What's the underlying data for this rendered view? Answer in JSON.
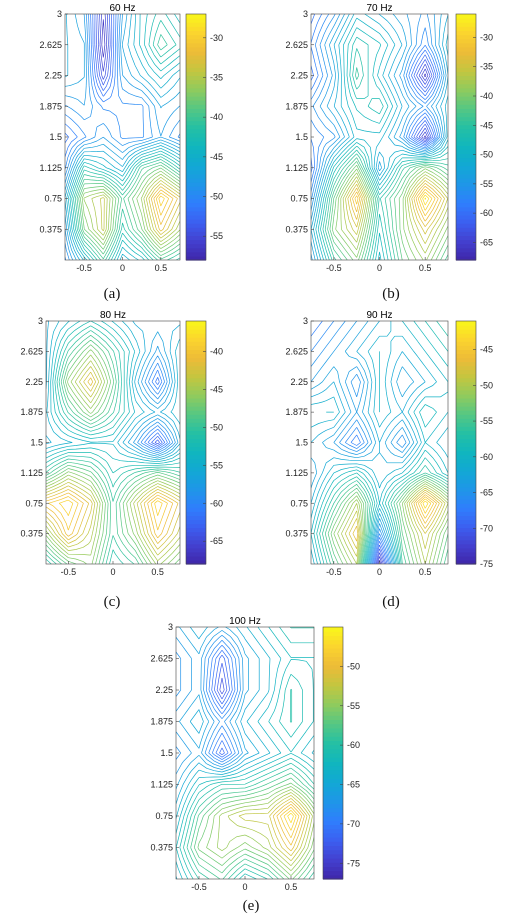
{
  "figure": {
    "captions": [
      "(a)",
      "(b)",
      "(c)",
      "(d)",
      "(e)"
    ]
  },
  "colormap": [
    "#3e26a8",
    "#4340cf",
    "#3c5ff0",
    "#2f7efd",
    "#1f96e8",
    "#12a8d4",
    "#10b6be",
    "#24c0a4",
    "#54c784",
    "#8ecb5e",
    "#c3c640",
    "#edbb38",
    "#fbd42e",
    "#f9f71a"
  ],
  "chart_data": [
    {
      "type": "heatmap",
      "style": "contour",
      "title": "60 Hz",
      "xlim": [
        -0.75,
        0.75
      ],
      "ylim": [
        0,
        3
      ],
      "xticks": [
        -0.5,
        0,
        0.5
      ],
      "xticklabels": [
        "-0.5",
        "0",
        "0.5"
      ],
      "yticks": [
        0.375,
        0.75,
        1.125,
        1.5,
        1.875,
        2.25,
        2.625,
        3
      ],
      "yticklabels": [
        "0.375",
        "0.75",
        "1.125",
        "1.5",
        "1.875",
        "2.25",
        "2.625",
        "3"
      ],
      "x": [
        -0.75,
        -0.5,
        -0.25,
        0,
        0.25,
        0.5,
        0.75
      ],
      "y": [
        0,
        0.375,
        0.75,
        1.125,
        1.5,
        1.875,
        2.25,
        2.625,
        3
      ],
      "z": [
        [
          -50,
          -45,
          -40,
          -46,
          -44,
          -40,
          -42
        ],
        [
          -48,
          -38,
          -34,
          -42,
          -38,
          -32,
          -36
        ],
        [
          -46,
          -36,
          -34,
          -40,
          -36,
          -29,
          -33
        ],
        [
          -50,
          -42,
          -44,
          -46,
          -40,
          -38,
          -42
        ],
        [
          -52,
          -50,
          -48,
          -50,
          -50,
          -48,
          -50
        ],
        [
          -49,
          -48,
          -50,
          -50,
          -50,
          -47,
          -48
        ],
        [
          -46,
          -47,
          -55,
          -48,
          -46,
          -44,
          -46
        ],
        [
          -46,
          -47,
          -57,
          -47,
          -44,
          -40,
          -42
        ],
        [
          -46,
          -48,
          -56,
          -48,
          -44,
          -42,
          -44
        ]
      ],
      "colorbar": {
        "ticks": [
          -30,
          -35,
          -40,
          -45,
          -50,
          -55
        ],
        "range": [
          -58,
          -27
        ]
      },
      "caption": "(a)"
    },
    {
      "type": "heatmap",
      "style": "contour",
      "title": "70 Hz",
      "xlim": [
        -0.75,
        0.75
      ],
      "ylim": [
        0,
        3
      ],
      "xticks": [
        -0.5,
        0,
        0.5
      ],
      "xticklabels": [
        "-0.5",
        "0",
        "0.5"
      ],
      "yticks": [
        0.375,
        0.75,
        1.125,
        1.5,
        1.875,
        2.25,
        2.625,
        3
      ],
      "yticklabels": [
        "0.375",
        "0.75",
        "1.125",
        "1.5",
        "1.875",
        "2.25",
        "2.625",
        "3"
      ],
      "x": [
        -0.75,
        -0.5,
        -0.25,
        0,
        0.25,
        0.5,
        0.75
      ],
      "y": [
        0,
        0.375,
        0.75,
        1.125,
        1.5,
        1.875,
        2.25,
        2.625,
        3
      ],
      "z": [
        [
          -55,
          -45,
          -40,
          -50,
          -42,
          -38,
          -44
        ],
        [
          -52,
          -40,
          -35,
          -48,
          -40,
          -34,
          -40
        ],
        [
          -56,
          -42,
          -30,
          -46,
          -40,
          -27,
          -36
        ],
        [
          -60,
          -48,
          -40,
          -54,
          -45,
          -40,
          -44
        ],
        [
          -58,
          -56,
          -50,
          -50,
          -55,
          -66,
          -50
        ],
        [
          -56,
          -52,
          -48,
          -46,
          -52,
          -56,
          -50
        ],
        [
          -60,
          -54,
          -44,
          -50,
          -55,
          -66,
          -52
        ],
        [
          -58,
          -52,
          -46,
          -48,
          -52,
          -58,
          -50
        ],
        [
          -60,
          -56,
          -50,
          -52,
          -54,
          -56,
          -52
        ]
      ],
      "colorbar": {
        "ticks": [
          -30,
          -35,
          -40,
          -45,
          -50,
          -55,
          -60,
          -65
        ],
        "range": [
          -68,
          -26
        ]
      },
      "caption": "(b)"
    },
    {
      "type": "heatmap",
      "style": "contour",
      "title": "80 Hz",
      "xlim": [
        -0.75,
        0.75
      ],
      "ylim": [
        0,
        3
      ],
      "xticks": [
        -0.5,
        0,
        0.5
      ],
      "xticklabels": [
        "-0.5",
        "0",
        "0.5"
      ],
      "yticks": [
        0.375,
        0.75,
        1.125,
        1.5,
        1.875,
        2.25,
        2.625,
        3
      ],
      "yticklabels": [
        "0.375",
        "0.75",
        "1.125",
        "1.5",
        "1.875",
        "2.25",
        "2.625",
        "3"
      ],
      "x": [
        -0.75,
        -0.5,
        -0.25,
        0,
        0.25,
        0.5,
        0.75
      ],
      "y": [
        0,
        0.375,
        0.75,
        1.125,
        1.5,
        1.875,
        2.25,
        2.625,
        3
      ],
      "z": [
        [
          -52,
          -48,
          -46,
          -52,
          -50,
          -45,
          -48
        ],
        [
          -46,
          -40,
          -44,
          -50,
          -46,
          -40,
          -44
        ],
        [
          -40,
          -38,
          -42,
          -50,
          -44,
          -38,
          -42
        ],
        [
          -50,
          -46,
          -48,
          -52,
          -50,
          -48,
          -50
        ],
        [
          -56,
          -55,
          -54,
          -54,
          -58,
          -64,
          -56
        ],
        [
          -55,
          -50,
          -46,
          -50,
          -54,
          -56,
          -54
        ],
        [
          -56,
          -46,
          -41,
          -48,
          -56,
          -62,
          -54
        ],
        [
          -56,
          -50,
          -46,
          -50,
          -54,
          -58,
          -54
        ],
        [
          -56,
          -54,
          -52,
          -54,
          -56,
          -56,
          -56
        ]
      ],
      "colorbar": {
        "ticks": [
          -40,
          -45,
          -50,
          -55,
          -60,
          -65
        ],
        "range": [
          -68,
          -36
        ]
      },
      "caption": "(c)"
    },
    {
      "type": "heatmap",
      "style": "contour",
      "title": "90 Hz",
      "xlim": [
        -0.75,
        0.75
      ],
      "ylim": [
        0,
        3
      ],
      "xticks": [
        -0.5,
        0,
        0.5
      ],
      "xticklabels": [
        "-0.5",
        "0",
        "0.5"
      ],
      "yticks": [
        0.375,
        0.75,
        1.125,
        1.5,
        1.875,
        2.25,
        2.625,
        3
      ],
      "yticklabels": [
        "0.375",
        "0.75",
        "1.125",
        "1.5",
        "1.875",
        "2.25",
        "2.625",
        "3"
      ],
      "x": [
        -0.75,
        -0.5,
        -0.25,
        0,
        0.25,
        0.5,
        0.75
      ],
      "y": [
        0,
        0.375,
        0.75,
        1.125,
        1.5,
        1.875,
        2.25,
        2.625,
        3
      ],
      "z": [
        [
          -62,
          -55,
          -50,
          -74,
          -56,
          -50,
          -56
        ],
        [
          -60,
          -52,
          -46,
          -66,
          -54,
          -48,
          -54
        ],
        [
          -62,
          -56,
          -50,
          -60,
          -52,
          -42,
          -50
        ],
        [
          -64,
          -60,
          -58,
          -62,
          -60,
          -56,
          -60
        ],
        [
          -62,
          -64,
          -68,
          -62,
          -66,
          -60,
          -62
        ],
        [
          -60,
          -60,
          -64,
          -60,
          -62,
          -58,
          -60
        ],
        [
          -64,
          -62,
          -66,
          -60,
          -64,
          -62,
          -60
        ],
        [
          -66,
          -64,
          -62,
          -60,
          -62,
          -60,
          -58
        ],
        [
          -68,
          -66,
          -64,
          -62,
          -60,
          -58,
          -56
        ]
      ],
      "colorbar": {
        "ticks": [
          -45,
          -50,
          -55,
          -60,
          -65,
          -70,
          -75
        ],
        "range": [
          -75,
          -41
        ]
      },
      "caption": "(d)"
    },
    {
      "type": "heatmap",
      "style": "contour",
      "title": "100 Hz",
      "xlim": [
        -0.75,
        0.75
      ],
      "ylim": [
        0,
        3
      ],
      "xticks": [
        -0.5,
        0,
        0.5
      ],
      "xticklabels": [
        "-0.5",
        "0",
        "0.5"
      ],
      "yticks": [
        0.375,
        0.75,
        1.125,
        1.5,
        1.875,
        2.25,
        2.625,
        3
      ],
      "yticklabels": [
        "0.375",
        "0.75",
        "1.125",
        "1.5",
        "1.875",
        "2.25",
        "2.625",
        "3"
      ],
      "x": [
        -0.75,
        -0.5,
        -0.25,
        0,
        0.25,
        0.5,
        0.75
      ],
      "y": [
        0,
        0.375,
        0.75,
        1.125,
        1.5,
        1.875,
        2.25,
        2.625,
        3
      ],
      "z": [
        [
          -64,
          -60,
          -58,
          -62,
          -60,
          -56,
          -60
        ],
        [
          -62,
          -56,
          -54,
          -56,
          -54,
          -50,
          -56
        ],
        [
          -64,
          -58,
          -54,
          -52,
          -52,
          -46,
          -54
        ],
        [
          -66,
          -62,
          -60,
          -60,
          -58,
          -56,
          -60
        ],
        [
          -68,
          -66,
          -72,
          -66,
          -64,
          -62,
          -64
        ],
        [
          -66,
          -64,
          -68,
          -64,
          -62,
          -60,
          -62
        ],
        [
          -68,
          -66,
          -74,
          -66,
          -64,
          -60,
          -62
        ],
        [
          -68,
          -66,
          -72,
          -66,
          -64,
          -62,
          -62
        ],
        [
          -66,
          -64,
          -66,
          -64,
          -62,
          -60,
          -60
        ]
      ],
      "colorbar": {
        "ticks": [
          -50,
          -55,
          -60,
          -65,
          -70,
          -75
        ],
        "range": [
          -77,
          -45
        ]
      },
      "caption": "(e)"
    }
  ]
}
